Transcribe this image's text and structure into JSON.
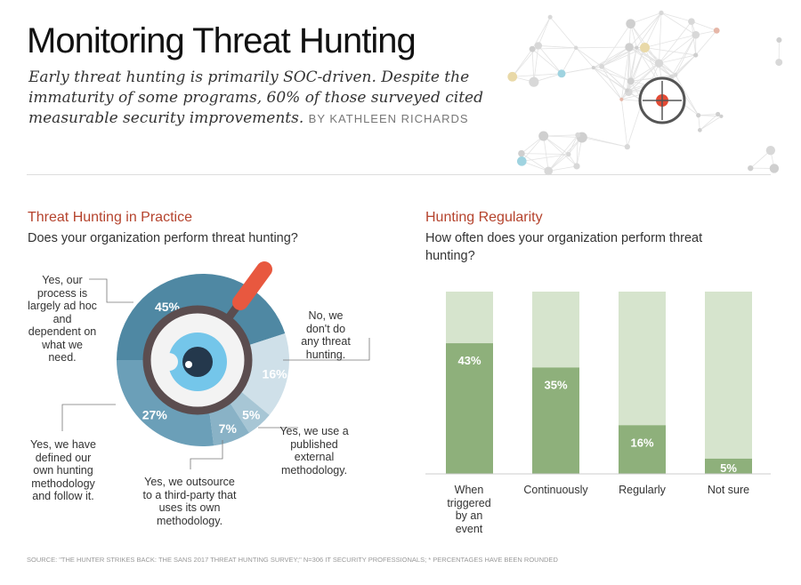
{
  "header": {
    "title": "Monitoring Threat Hunting",
    "subtitle": "Early threat hunting is primarily SOC-driven. Despite the immaturity of some programs, 60% of those surveyed cited measurable security improvements.",
    "byline": "BY KATHLEEN RICHARDS",
    "icon": "network-target-icon"
  },
  "source": "SOURCE: \"THE HUNTER STRIKES BACK: THE SANS 2017 THREAT HUNTING SURVEY;\" N=306 IT SECURITY PROFESSIONALS; * PERCENTAGES HAVE BEEN ROUNDED",
  "chart_data": [
    {
      "type": "pie",
      "donut": true,
      "title": "Threat Hunting in Practice",
      "subtitle": "Does your organization perform threat hunting?",
      "center_icon": "magnifier-eye-icon",
      "slices": [
        {
          "label": "Yes, our process is largely ad hoc and dependent on what we need.",
          "value": 45,
          "value_label": "45%",
          "color": "#4f88a3"
        },
        {
          "label": "No, we don't do any threat hunting.",
          "value": 16,
          "value_label": "16%",
          "color": "#cfe0e9"
        },
        {
          "label": "Yes, we use a published external methodology.",
          "value": 5,
          "value_label": "5%",
          "color": "#a7c6d5"
        },
        {
          "label": "Yes, we outsource to a third-party that uses its own methodology.",
          "value": 7,
          "value_label": "7%",
          "color": "#89b2c6"
        },
        {
          "label": "Yes, we have defined our own hunting methodology and follow it.",
          "value": 27,
          "value_label": "27%",
          "color": "#6b9fb8"
        }
      ]
    },
    {
      "type": "bar",
      "title": "Hunting Regularity",
      "subtitle": "How often does your organization perform threat hunting?",
      "categories": [
        "When triggered by an event",
        "Continuously",
        "Regularly",
        "Not sure"
      ],
      "values": [
        43,
        35,
        16,
        5
      ],
      "value_labels": [
        "43%",
        "35%",
        "16%",
        "5%"
      ],
      "ylim": [
        0,
        60
      ],
      "bar_color": "#8eb07b",
      "background_color": "#d6e4cd"
    }
  ]
}
